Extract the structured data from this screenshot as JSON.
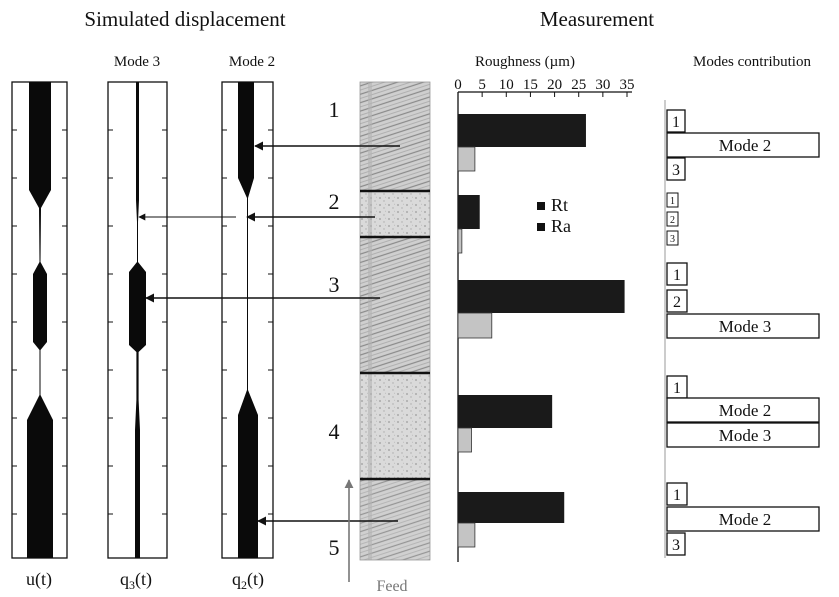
{
  "titles": {
    "simulated": "Simulated displacement",
    "measurement": "Measurement"
  },
  "columns": {
    "mode3": "Mode 3",
    "mode2": "Mode 2",
    "roughness": "Roughness (µm)",
    "modes_contribution": "Modes contribution"
  },
  "signals": {
    "u_label": "u(t)",
    "q3_label": "q",
    "q3_sub": "3",
    "q3_tail": "(t)",
    "q2_label": "q",
    "q2_sub": "2",
    "q2_tail": "(t)"
  },
  "zones": [
    "1",
    "2",
    "3",
    "4",
    "5"
  ],
  "feed_label": "Feed",
  "legend": {
    "rt": "Rt",
    "ra": "Ra"
  },
  "chart_data": {
    "type": "bar",
    "orientation": "horizontal",
    "title": "Roughness (µm)",
    "categories": [
      "1",
      "2",
      "3",
      "4",
      "5"
    ],
    "xlim": [
      0,
      35
    ],
    "ticks": [
      "0",
      "5",
      "10",
      "15",
      "20",
      "25",
      "30",
      "35"
    ],
    "series": [
      {
        "name": "Rt",
        "color": "#1a1a1a",
        "values": [
          26.5,
          4.5,
          34.5,
          19.5,
          22
        ]
      },
      {
        "name": "Ra",
        "color": "#c4c4c4",
        "values": [
          3.5,
          0.8,
          7,
          2.8,
          3.5
        ]
      }
    ]
  },
  "contributions": {
    "zone1": [
      "1",
      "Mode 2",
      "3"
    ],
    "zone2": [
      "1",
      "2",
      "3"
    ],
    "zone3": [
      "1",
      "2",
      "Mode 3"
    ],
    "zone4": [
      "1",
      "Mode 2",
      "Mode 3"
    ],
    "zone5": [
      "1",
      "Mode 2",
      "3"
    ]
  }
}
